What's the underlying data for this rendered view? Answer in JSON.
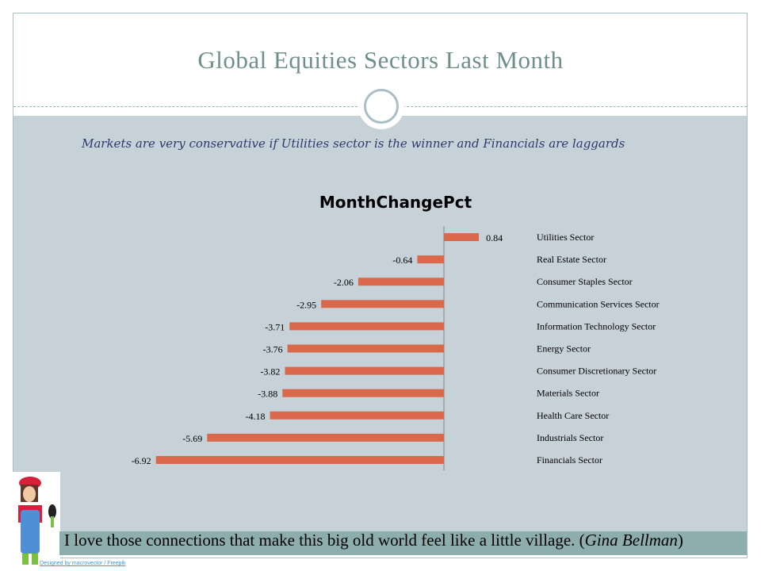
{
  "slide": {
    "title": "Global Equities Sectors Last Month",
    "subtitle": "Markets are very conservative if Utilities sector is the winner and Financials are laggards",
    "quote": "I love those connections that make this big old world feel like a little village.",
    "quote_author": "Gina Bellman",
    "credit": "Designed by macrovector / Freepik"
  },
  "chart_data": {
    "type": "bar",
    "orientation": "horizontal",
    "title": "MonthChangePct",
    "categories": [
      "Utilities Sector",
      "Real Estate Sector",
      "Consumer Staples Sector",
      "Communication Services Sector",
      "Information Technology Sector",
      "Energy Sector",
      "Consumer Discretionary Sector",
      "Materials Sector",
      "Health Care Sector",
      "Industrials Sector",
      "Financials Sector"
    ],
    "values": [
      0.84,
      -0.64,
      -2.06,
      -2.95,
      -3.71,
      -3.76,
      -3.82,
      -3.88,
      -4.18,
      -5.69,
      -6.92
    ],
    "value_labels": [
      "0.84",
      "-0.64",
      "-2.06",
      "-2.95",
      "-3.71",
      "-3.76",
      "-3.82",
      "-3.88",
      "-4.18",
      "-5.69",
      "-6.92"
    ],
    "bar_color": "#d9694a",
    "grid": false,
    "legend": "none"
  }
}
